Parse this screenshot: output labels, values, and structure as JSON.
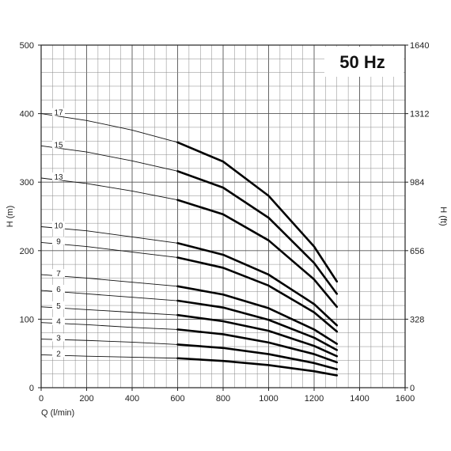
{
  "chart_data": {
    "type": "line",
    "badge": "50 Hz",
    "xlabel": "Q (l/min)",
    "ylabel_left": "H (m)",
    "ylabel_right": "H (ft)",
    "xlim": [
      0,
      1600
    ],
    "ylim": [
      0,
      500
    ],
    "x_ticks": [
      0,
      200,
      400,
      600,
      800,
      1000,
      1200,
      1400,
      1600
    ],
    "y_ticks_left": [
      0,
      100,
      200,
      300,
      400,
      500
    ],
    "y_ticks_right": [
      "0",
      "328",
      "656",
      "984",
      "1312",
      "1640"
    ],
    "grid": true,
    "operating_range": [
      600,
      1300
    ],
    "series": [
      {
        "name": "2",
        "points": [
          [
            0,
            48
          ],
          [
            200,
            46
          ],
          [
            400,
            44.5
          ],
          [
            600,
            43
          ],
          [
            800,
            39
          ],
          [
            1000,
            33
          ],
          [
            1200,
            24
          ],
          [
            1300,
            18
          ]
        ]
      },
      {
        "name": "3",
        "points": [
          [
            0,
            71
          ],
          [
            200,
            69
          ],
          [
            400,
            66.5
          ],
          [
            600,
            63
          ],
          [
            800,
            58
          ],
          [
            1000,
            49
          ],
          [
            1200,
            36
          ],
          [
            1300,
            27
          ]
        ]
      },
      {
        "name": "4",
        "points": [
          [
            0,
            95
          ],
          [
            200,
            92
          ],
          [
            400,
            88
          ],
          [
            600,
            85
          ],
          [
            800,
            78
          ],
          [
            1000,
            66
          ],
          [
            1200,
            49
          ],
          [
            1300,
            37
          ]
        ]
      },
      {
        "name": "5",
        "points": [
          [
            0,
            118
          ],
          [
            200,
            114
          ],
          [
            400,
            110
          ],
          [
            600,
            106
          ],
          [
            800,
            97
          ],
          [
            1000,
            83
          ],
          [
            1200,
            61
          ],
          [
            1300,
            46
          ]
        ]
      },
      {
        "name": "6",
        "points": [
          [
            0,
            142
          ],
          [
            200,
            137
          ],
          [
            400,
            132
          ],
          [
            600,
            127
          ],
          [
            800,
            117
          ],
          [
            1000,
            99
          ],
          [
            1200,
            73
          ],
          [
            1300,
            55
          ]
        ]
      },
      {
        "name": "7",
        "points": [
          [
            0,
            165
          ],
          [
            200,
            160
          ],
          [
            400,
            154
          ],
          [
            600,
            148
          ],
          [
            800,
            136
          ],
          [
            1000,
            116
          ],
          [
            1200,
            85
          ],
          [
            1300,
            64
          ]
        ]
      },
      {
        "name": "9",
        "points": [
          [
            0,
            212
          ],
          [
            200,
            206
          ],
          [
            400,
            198
          ],
          [
            600,
            190
          ],
          [
            800,
            175
          ],
          [
            1000,
            149
          ],
          [
            1200,
            110
          ],
          [
            1300,
            82
          ]
        ]
      },
      {
        "name": "10",
        "points": [
          [
            0,
            235
          ],
          [
            200,
            229
          ],
          [
            400,
            220
          ],
          [
            600,
            211
          ],
          [
            800,
            194
          ],
          [
            1000,
            165
          ],
          [
            1200,
            122
          ],
          [
            1300,
            91
          ]
        ]
      },
      {
        "name": "13",
        "points": [
          [
            0,
            306
          ],
          [
            200,
            298
          ],
          [
            400,
            287
          ],
          [
            600,
            274
          ],
          [
            800,
            253
          ],
          [
            1000,
            215
          ],
          [
            1200,
            158
          ],
          [
            1300,
            118
          ]
        ]
      },
      {
        "name": "15",
        "points": [
          [
            0,
            353
          ],
          [
            200,
            344
          ],
          [
            400,
            331
          ],
          [
            600,
            316
          ],
          [
            800,
            292
          ],
          [
            1000,
            248
          ],
          [
            1200,
            182
          ],
          [
            1300,
            137
          ]
        ]
      },
      {
        "name": "17",
        "points": [
          [
            0,
            400
          ],
          [
            200,
            390
          ],
          [
            400,
            376
          ],
          [
            600,
            358
          ],
          [
            800,
            330
          ],
          [
            1000,
            280
          ],
          [
            1200,
            206
          ],
          [
            1300,
            155
          ]
        ]
      }
    ]
  }
}
